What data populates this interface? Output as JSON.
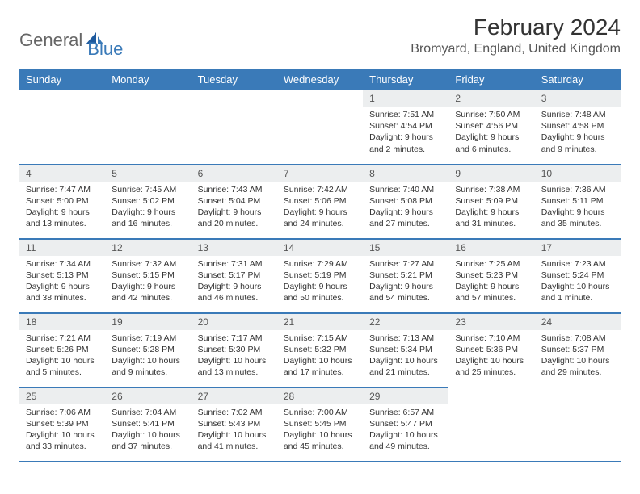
{
  "brand": {
    "part1": "General",
    "part2": "Blue"
  },
  "title": "February 2024",
  "location": "Bromyard, England, United Kingdom",
  "colors": {
    "header_bg": "#3a7ab8",
    "header_text": "#ffffff",
    "daynum_bg": "#eceeef",
    "border": "#3a7ab8",
    "logo_gray": "#666666",
    "logo_blue": "#3a7ab8"
  },
  "day_labels": [
    "Sunday",
    "Monday",
    "Tuesday",
    "Wednesday",
    "Thursday",
    "Friday",
    "Saturday"
  ],
  "weeks": [
    [
      {
        "empty": true
      },
      {
        "empty": true
      },
      {
        "empty": true
      },
      {
        "empty": true
      },
      {
        "n": "1",
        "sunrise": "7:51 AM",
        "sunset": "4:54 PM",
        "daylight": "9 hours and 2 minutes."
      },
      {
        "n": "2",
        "sunrise": "7:50 AM",
        "sunset": "4:56 PM",
        "daylight": "9 hours and 6 minutes."
      },
      {
        "n": "3",
        "sunrise": "7:48 AM",
        "sunset": "4:58 PM",
        "daylight": "9 hours and 9 minutes."
      }
    ],
    [
      {
        "n": "4",
        "sunrise": "7:47 AM",
        "sunset": "5:00 PM",
        "daylight": "9 hours and 13 minutes."
      },
      {
        "n": "5",
        "sunrise": "7:45 AM",
        "sunset": "5:02 PM",
        "daylight": "9 hours and 16 minutes."
      },
      {
        "n": "6",
        "sunrise": "7:43 AM",
        "sunset": "5:04 PM",
        "daylight": "9 hours and 20 minutes."
      },
      {
        "n": "7",
        "sunrise": "7:42 AM",
        "sunset": "5:06 PM",
        "daylight": "9 hours and 24 minutes."
      },
      {
        "n": "8",
        "sunrise": "7:40 AM",
        "sunset": "5:08 PM",
        "daylight": "9 hours and 27 minutes."
      },
      {
        "n": "9",
        "sunrise": "7:38 AM",
        "sunset": "5:09 PM",
        "daylight": "9 hours and 31 minutes."
      },
      {
        "n": "10",
        "sunrise": "7:36 AM",
        "sunset": "5:11 PM",
        "daylight": "9 hours and 35 minutes."
      }
    ],
    [
      {
        "n": "11",
        "sunrise": "7:34 AM",
        "sunset": "5:13 PM",
        "daylight": "9 hours and 38 minutes."
      },
      {
        "n": "12",
        "sunrise": "7:32 AM",
        "sunset": "5:15 PM",
        "daylight": "9 hours and 42 minutes."
      },
      {
        "n": "13",
        "sunrise": "7:31 AM",
        "sunset": "5:17 PM",
        "daylight": "9 hours and 46 minutes."
      },
      {
        "n": "14",
        "sunrise": "7:29 AM",
        "sunset": "5:19 PM",
        "daylight": "9 hours and 50 minutes."
      },
      {
        "n": "15",
        "sunrise": "7:27 AM",
        "sunset": "5:21 PM",
        "daylight": "9 hours and 54 minutes."
      },
      {
        "n": "16",
        "sunrise": "7:25 AM",
        "sunset": "5:23 PM",
        "daylight": "9 hours and 57 minutes."
      },
      {
        "n": "17",
        "sunrise": "7:23 AM",
        "sunset": "5:24 PM",
        "daylight": "10 hours and 1 minute."
      }
    ],
    [
      {
        "n": "18",
        "sunrise": "7:21 AM",
        "sunset": "5:26 PM",
        "daylight": "10 hours and 5 minutes."
      },
      {
        "n": "19",
        "sunrise": "7:19 AM",
        "sunset": "5:28 PM",
        "daylight": "10 hours and 9 minutes."
      },
      {
        "n": "20",
        "sunrise": "7:17 AM",
        "sunset": "5:30 PM",
        "daylight": "10 hours and 13 minutes."
      },
      {
        "n": "21",
        "sunrise": "7:15 AM",
        "sunset": "5:32 PM",
        "daylight": "10 hours and 17 minutes."
      },
      {
        "n": "22",
        "sunrise": "7:13 AM",
        "sunset": "5:34 PM",
        "daylight": "10 hours and 21 minutes."
      },
      {
        "n": "23",
        "sunrise": "7:10 AM",
        "sunset": "5:36 PM",
        "daylight": "10 hours and 25 minutes."
      },
      {
        "n": "24",
        "sunrise": "7:08 AM",
        "sunset": "5:37 PM",
        "daylight": "10 hours and 29 minutes."
      }
    ],
    [
      {
        "n": "25",
        "sunrise": "7:06 AM",
        "sunset": "5:39 PM",
        "daylight": "10 hours and 33 minutes."
      },
      {
        "n": "26",
        "sunrise": "7:04 AM",
        "sunset": "5:41 PM",
        "daylight": "10 hours and 37 minutes."
      },
      {
        "n": "27",
        "sunrise": "7:02 AM",
        "sunset": "5:43 PM",
        "daylight": "10 hours and 41 minutes."
      },
      {
        "n": "28",
        "sunrise": "7:00 AM",
        "sunset": "5:45 PM",
        "daylight": "10 hours and 45 minutes."
      },
      {
        "n": "29",
        "sunrise": "6:57 AM",
        "sunset": "5:47 PM",
        "daylight": "10 hours and 49 minutes."
      },
      {
        "empty": true
      },
      {
        "empty": true
      }
    ]
  ],
  "labels": {
    "sunrise": "Sunrise: ",
    "sunset": "Sunset: ",
    "daylight": "Daylight: "
  }
}
